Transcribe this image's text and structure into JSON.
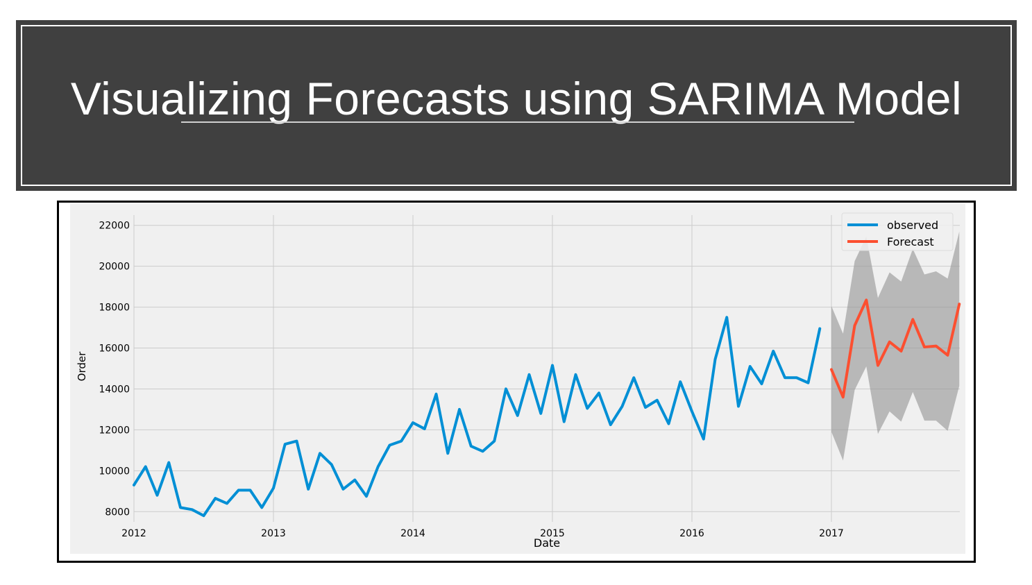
{
  "slide": {
    "title": "Visualizing Forecasts using SARIMA Model"
  },
  "chart_data": {
    "type": "line",
    "title": "",
    "xlabel": "Date",
    "ylabel": "Order",
    "xlim": [
      "2012-01",
      "2017-11"
    ],
    "ylim": [
      7500,
      22500
    ],
    "x_ticks": [
      "2012",
      "2013",
      "2014",
      "2015",
      "2016",
      "2017"
    ],
    "y_ticks": [
      8000,
      10000,
      12000,
      14000,
      16000,
      18000,
      20000,
      22000
    ],
    "grid": true,
    "legend_position": "top-right",
    "colors": {
      "observed": "#008fd5",
      "forecast": "#fc4f30",
      "ci": "#999999",
      "plot_bg": "#f0f0f0",
      "grid": "#cbcbcb"
    },
    "series": [
      {
        "name": "observed",
        "x": [
          "2012-01",
          "2012-02",
          "2012-03",
          "2012-04",
          "2012-05",
          "2012-06",
          "2012-07",
          "2012-08",
          "2012-09",
          "2012-10",
          "2012-11",
          "2012-12",
          "2013-01",
          "2013-02",
          "2013-03",
          "2013-04",
          "2013-05",
          "2013-06",
          "2013-07",
          "2013-08",
          "2013-09",
          "2013-10",
          "2013-11",
          "2013-12",
          "2014-01",
          "2014-02",
          "2014-03",
          "2014-04",
          "2014-05",
          "2014-06",
          "2014-07",
          "2014-08",
          "2014-09",
          "2014-10",
          "2014-11",
          "2014-12",
          "2015-01",
          "2015-02",
          "2015-03",
          "2015-04",
          "2015-05",
          "2015-06",
          "2015-07",
          "2015-08",
          "2015-09",
          "2015-10",
          "2015-11",
          "2015-12",
          "2016-01",
          "2016-02",
          "2016-03",
          "2016-04",
          "2016-05",
          "2016-06",
          "2016-07",
          "2016-08",
          "2016-09",
          "2016-10",
          "2016-11",
          "2016-12"
        ],
        "values": [
          9300,
          10200,
          8800,
          10400,
          8200,
          8100,
          7800,
          8650,
          8400,
          9050,
          9050,
          8200,
          9150,
          11300,
          11450,
          9100,
          10850,
          10300,
          9100,
          9550,
          8750,
          10200,
          11250,
          11450,
          12350,
          12050,
          13750,
          10850,
          13000,
          11200,
          10950,
          11450,
          14000,
          12700,
          14700,
          12800,
          15150,
          12400,
          14700,
          13050,
          13800,
          12250,
          13150,
          14550,
          13100,
          13450,
          12300,
          14350,
          12900,
          11550,
          15450,
          17500,
          13150,
          15100,
          14250,
          15850,
          14550,
          14550,
          14300,
          16950
        ]
      },
      {
        "name": "Forecast",
        "x": [
          "2017-01",
          "2017-02",
          "2017-03",
          "2017-04",
          "2017-05",
          "2017-06",
          "2017-07",
          "2017-08",
          "2017-09",
          "2017-10",
          "2017-11",
          "2017-12"
        ],
        "values": [
          14950,
          13600,
          17100,
          18350,
          15150,
          16300,
          15850,
          17400,
          16050,
          16100,
          15650,
          18150
        ],
        "lower": [
          11900,
          10500,
          13950,
          15100,
          11800,
          12900,
          12400,
          13850,
          12450,
          12450,
          11950,
          14150
        ],
        "upper": [
          18050,
          16700,
          20250,
          21450,
          18450,
          19700,
          19250,
          20850,
          19600,
          19750,
          19400,
          21700
        ]
      }
    ]
  }
}
